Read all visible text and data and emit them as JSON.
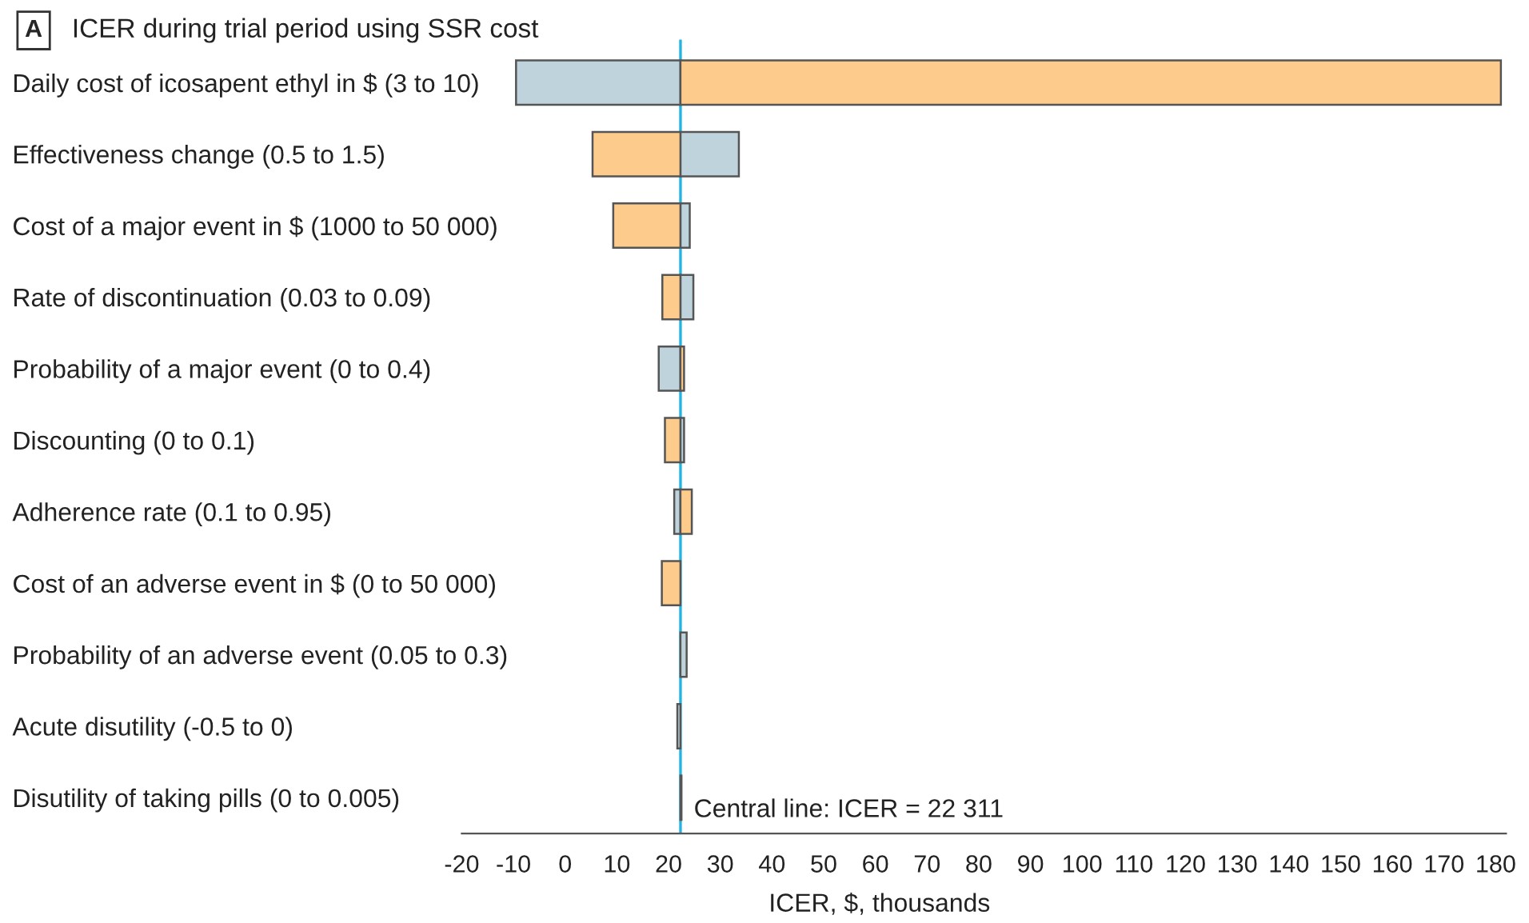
{
  "chart_data": {
    "type": "bar",
    "orientation": "horizontal",
    "title": "ICER during trial period using SSR cost",
    "annotations": [
      "A"
    ],
    "xlabel": "ICER, $, thousands",
    "categories": [
      "Daily cost of icosapent ethyl in $ (3 to 10)",
      "Effectiveness change (0.5 to 1.5)",
      "Cost of a major event in $ (1000 to 50 000)",
      "Rate of discontinuation (0.03 to 0.09)",
      "Probability of a major event (0 to 0.4)",
      "Discounting (0 to 0.1)",
      "Adherence rate (0.1 to 0.95)",
      "Cost of an adverse event in $ (0 to 50 000)",
      "Probability of an adverse event (0.05 to 0.3)",
      "Acute disutility (-0.5 to 0)",
      "Disutility of taking pills (0 to 0.005)"
    ],
    "series": [
      {
        "color": "#bfd3dc",
        "base": [
          -9.5,
          22.3,
          22.3,
          22.3,
          18.1,
          22.3,
          21.1,
          null,
          22.3,
          21.7,
          22.3
        ],
        "values": [
          31.8,
          11.3,
          1.8,
          2.5,
          4.2,
          0.7,
          1.2,
          null,
          1.2,
          0.6,
          0.2
        ]
      },
      {
        "color": "#fdcb8c",
        "base": [
          22.3,
          5.3,
          9.3,
          18.8,
          22.3,
          19.3,
          22.3,
          18.7,
          null,
          null,
          null
        ],
        "values": [
          158.7,
          17.0,
          13.0,
          3.5,
          0.7,
          3.0,
          2.2,
          3.6,
          null,
          null,
          null
        ]
      }
    ],
    "xlim": [
      -20,
      182
    ],
    "xticks": [
      -20,
      -10,
      0,
      10,
      20,
      30,
      40,
      50,
      60,
      70,
      80,
      90,
      100,
      110,
      120,
      130,
      140,
      150,
      160,
      170,
      180
    ],
    "ref_lines": [
      {
        "axis": "x",
        "value": 22.311,
        "label": "Central line: ICER = 22 311",
        "color": "#1fb4e6"
      }
    ],
    "grid": false,
    "legend": false
  }
}
